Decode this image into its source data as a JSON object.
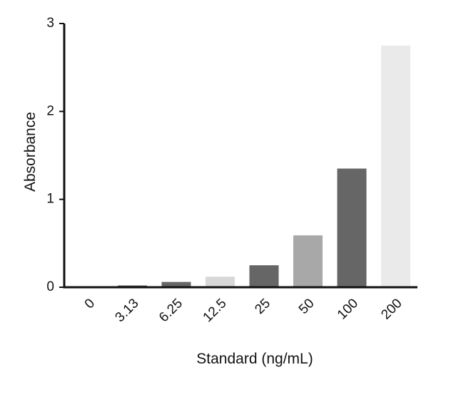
{
  "chart_data": {
    "type": "bar",
    "x_label": "Standard (ng/mL)",
    "y_label": "Absorbance",
    "categories": [
      "0",
      "3.13",
      "6.25",
      "12.5",
      "25",
      "50",
      "100",
      "200"
    ],
    "values": [
      0,
      0.02,
      0.06,
      0.12,
      0.25,
      0.59,
      1.35,
      2.75
    ],
    "colors": [
      "#555555",
      "#555555",
      "#666666",
      "#d8d8d8",
      "#666666",
      "#a8a8a8",
      "#666666",
      "#eaeaea"
    ],
    "ylim": [
      0,
      3
    ],
    "yticks": [
      0,
      1,
      2,
      3
    ],
    "grid": false
  }
}
